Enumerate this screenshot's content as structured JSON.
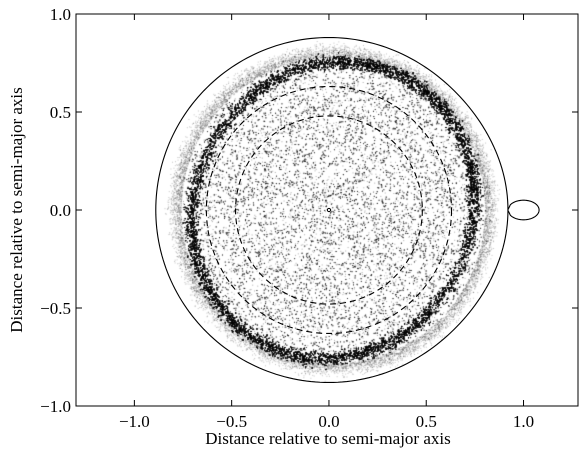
{
  "chart_data": {
    "type": "scatter",
    "title": "",
    "xlabel": "Distance relative to semi-major axis",
    "ylabel": "Distance relative to semi-major axis",
    "xlim": [
      -1.3,
      1.28
    ],
    "ylim": [
      -1.0,
      1.0
    ],
    "x_ticks": [
      -1.0,
      -0.5,
      0.0,
      0.5,
      1.0
    ],
    "x_tick_labels": [
      "−1.0",
      "−0.5",
      "0.0",
      "0.5",
      "1.0"
    ],
    "y_ticks": [
      -1.0,
      -0.5,
      0.0,
      0.5,
      1.0
    ],
    "y_tick_labels": [
      "−1.0",
      "−0.5",
      "0.0",
      "0.5",
      "1.0"
    ],
    "grid": false,
    "legend": "none",
    "primary_roche_lobe": {
      "x_left": -0.89,
      "x_inner_lagrange_point": 0.92,
      "y_half_height_at_center": 0.88,
      "color": "#000000"
    },
    "secondary_roche_lobe": {
      "center": [
        1.0,
        0.0
      ],
      "x_range": [
        0.92,
        1.08
      ],
      "y_half_height": 0.05,
      "color": "#000000"
    },
    "dashed_circles": [
      {
        "center": [
          0.0,
          0.0
        ],
        "radius": 0.48,
        "style": "dashed"
      },
      {
        "center": [
          0.0,
          0.0
        ],
        "radius": 0.63,
        "style": "dashed"
      }
    ],
    "central_star": {
      "x": 0.0,
      "y": 0.0
    },
    "particle_disc": {
      "description_free": true,
      "outer_radius": 0.78,
      "dense_ring_radius": 0.74,
      "center_offset": [
        0.02,
        0.0
      ],
      "color": "#000000"
    }
  }
}
